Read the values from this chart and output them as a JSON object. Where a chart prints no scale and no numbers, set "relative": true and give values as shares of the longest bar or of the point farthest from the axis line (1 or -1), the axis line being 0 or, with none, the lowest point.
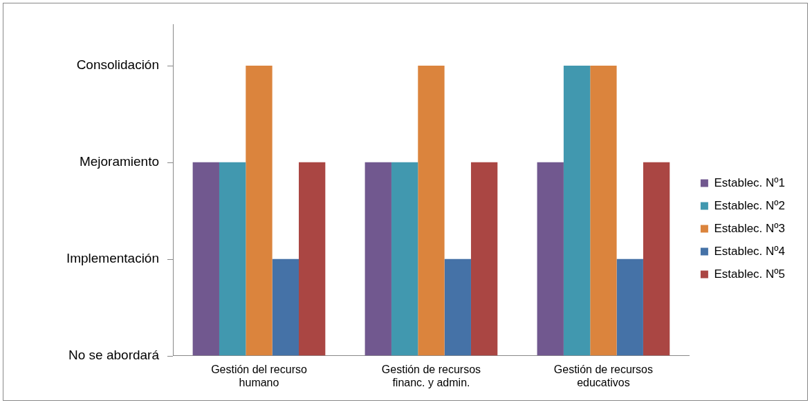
{
  "chart_data": {
    "type": "bar",
    "categories": [
      "Gestión del recurso humano",
      "Gestión de recursos financ. y admin.",
      "Gestión de recursos educativos"
    ],
    "series": [
      {
        "name": "Establec. Nº1",
        "color": "#71588f",
        "values": [
          0.667,
          0.667,
          0.667
        ]
      },
      {
        "name": "Establec. Nº2",
        "color": "#4198af",
        "values": [
          0.667,
          0.667,
          1
        ]
      },
      {
        "name": "Establec. Nº3",
        "color": "#db843d",
        "values": [
          1,
          1,
          1
        ]
      },
      {
        "name": "Establec. Nº4",
        "color": "#4572a7",
        "values": [
          0.333,
          0.333,
          0.333
        ]
      },
      {
        "name": "Establec. Nº5",
        "color": "#aa4643",
        "values": [
          0.667,
          0.667,
          0.667
        ]
      }
    ],
    "relative": true,
    "annotations": [
      "No se abordará",
      "Implementación",
      "Mejoramiento",
      "Consolidación"
    ],
    "grid": false,
    "legend": "right"
  }
}
